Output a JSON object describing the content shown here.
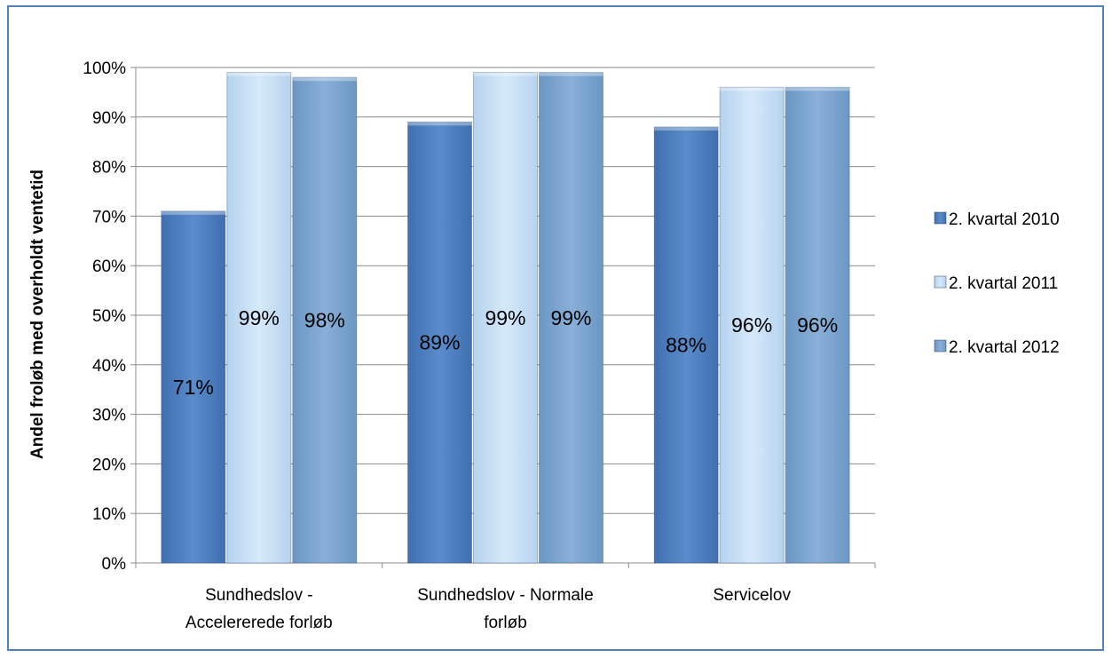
{
  "chart_data": {
    "type": "bar",
    "title": "",
    "ylabel": "Andel froløb med overholdt ventetid",
    "xlabel": "",
    "ylim": [
      0,
      100
    ],
    "yticks": [
      "0%",
      "10%",
      "20%",
      "30%",
      "40%",
      "50%",
      "60%",
      "70%",
      "80%",
      "90%",
      "100%"
    ],
    "grid": true,
    "legend_position": "right",
    "categories": [
      [
        "Sundhedslov -",
        "Accelererede forløb"
      ],
      [
        "Sundhedslov - Normale",
        "forløb"
      ],
      [
        "Servicelov"
      ]
    ],
    "series": [
      {
        "name": "2. kvartal 2010",
        "values": [
          71,
          89,
          88
        ],
        "labels": [
          "71%",
          "89%",
          "88%"
        ],
        "color": "#4f81bd"
      },
      {
        "name": "2. kvartal 2011",
        "values": [
          99,
          99,
          96
        ],
        "labels": [
          "99%",
          "99%",
          "96%"
        ],
        "color": "#c6dff5"
      },
      {
        "name": "2. kvartal 2012",
        "values": [
          98,
          99,
          96
        ],
        "labels": [
          "98%",
          "99%",
          "96%"
        ],
        "color": "#7faad3"
      }
    ]
  }
}
